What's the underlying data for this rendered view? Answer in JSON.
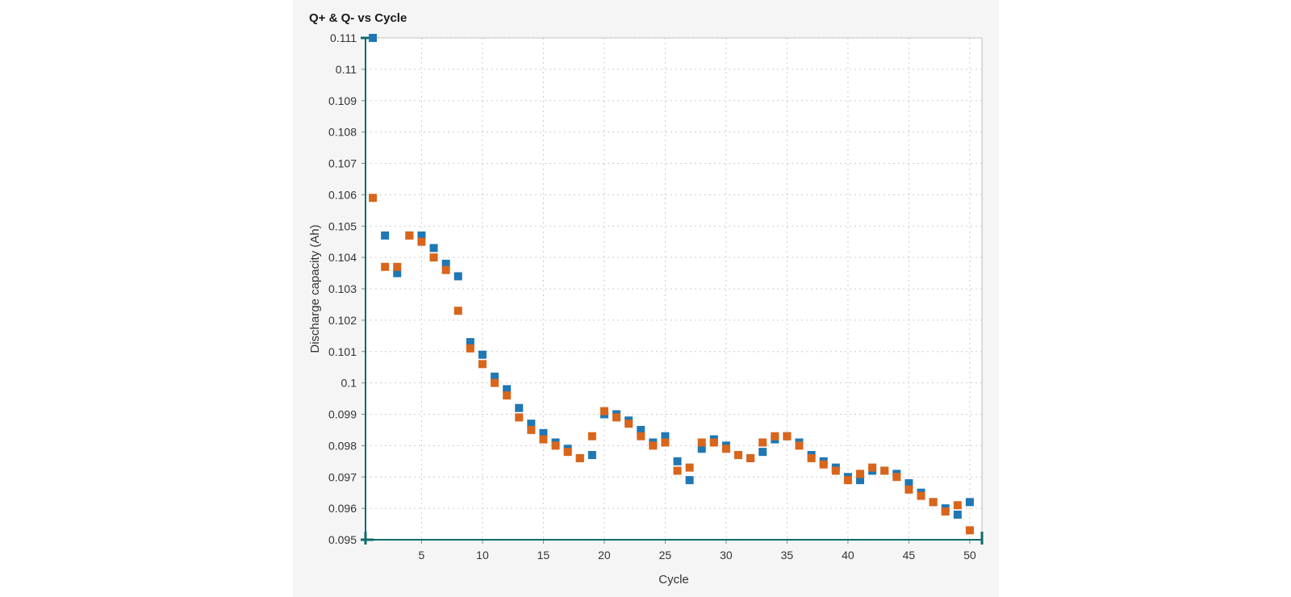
{
  "chart_data": {
    "type": "scatter",
    "title": "Q+ & Q- vs Cycle",
    "xlabel": "Cycle",
    "ylabel": "Discharge capacity (Ah)",
    "xlim": [
      0.4,
      51
    ],
    "ylim": [
      0.095,
      0.111
    ],
    "x_ticks": [
      5,
      10,
      15,
      20,
      25,
      30,
      35,
      40,
      45,
      50
    ],
    "y_ticks": [
      "0.095",
      "0.096",
      "0.097",
      "0.098",
      "0.099",
      "0.1",
      "0.101",
      "0.102",
      "0.103",
      "0.104",
      "0.105",
      "0.106",
      "0.107",
      "0.108",
      "0.109",
      "0.11",
      "0.111"
    ],
    "grid": true,
    "legend": "none",
    "colors": {
      "series1": "#1f77b4",
      "series2": "#d9651b",
      "axis_marker": "#0e6b6b",
      "grid": "#cccccc"
    },
    "x": [
      1,
      2,
      3,
      4,
      5,
      6,
      7,
      8,
      9,
      10,
      11,
      12,
      13,
      14,
      15,
      16,
      17,
      18,
      19,
      20,
      21,
      22,
      23,
      24,
      25,
      26,
      27,
      28,
      29,
      30,
      31,
      32,
      33,
      34,
      35,
      36,
      37,
      38,
      39,
      40,
      41,
      42,
      43,
      44,
      45,
      46,
      47,
      48,
      49,
      50
    ],
    "series": [
      {
        "color": "#1f77b4",
        "values": [
          0.111,
          0.1047,
          0.1035,
          0.1047,
          0.1047,
          0.1043,
          0.1038,
          0.1034,
          0.1013,
          0.1009,
          0.1002,
          0.0998,
          0.0992,
          0.0987,
          0.0984,
          0.0981,
          0.0979,
          0.0976,
          0.0977,
          0.099,
          0.099,
          0.0988,
          0.0985,
          0.0981,
          0.0983,
          0.0975,
          0.0969,
          0.0979,
          0.0982,
          0.098,
          0.0977,
          0.0976,
          0.0978,
          0.0982,
          0.0983,
          0.0981,
          0.0977,
          0.0975,
          0.0973,
          0.097,
          0.0969,
          0.0972,
          0.0972,
          0.0971,
          0.0968,
          0.0965,
          0.0962,
          0.096,
          0.0958,
          0.0962
        ]
      },
      {
        "color": "#d9651b",
        "values": [
          0.1059,
          0.1037,
          0.1037,
          0.1047,
          0.1045,
          0.104,
          0.1036,
          0.1023,
          0.1011,
          0.1006,
          0.1,
          0.0996,
          0.0989,
          0.0985,
          0.0982,
          0.098,
          0.0978,
          0.0976,
          0.0983,
          0.0991,
          0.0989,
          0.0987,
          0.0983,
          0.098,
          0.0981,
          0.0972,
          0.0973,
          0.0981,
          0.0981,
          0.0979,
          0.0977,
          0.0976,
          0.0981,
          0.0983,
          0.0983,
          0.098,
          0.0976,
          0.0974,
          0.0972,
          0.0969,
          0.0971,
          0.0973,
          0.0972,
          0.097,
          0.0966,
          0.0964,
          0.0962,
          0.0959,
          0.0961,
          0.0953
        ]
      }
    ]
  }
}
